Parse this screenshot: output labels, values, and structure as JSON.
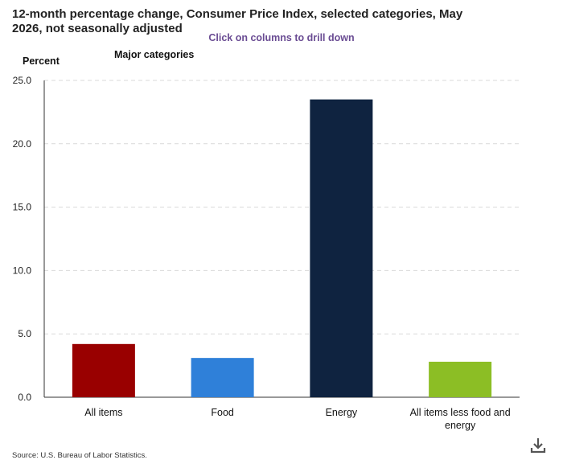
{
  "chart": {
    "title": "12-month percentage change, Consumer Price Index, selected categories, May 2026, not seasonally adjusted",
    "drill_hint": "Click on columns to drill down",
    "subtitle": "Major categories",
    "unit_label": "Percent"
  },
  "source": "Source: U.S. Bureau of Labor Statistics.",
  "icons": {
    "download": "download-icon"
  },
  "chart_data": {
    "type": "bar",
    "title": "12-month percentage change, Consumer Price Index, selected categories, May 2026, not seasonally adjusted",
    "subtitle": "Major categories",
    "ylabel": "Percent",
    "xlabel": "",
    "categories": [
      "All items",
      "Food",
      "Energy",
      "All items less food and energy"
    ],
    "values": [
      4.2,
      3.1,
      23.5,
      2.8
    ],
    "colors": [
      "#990000",
      "#2f80d9",
      "#0f2340",
      "#8cbe25"
    ],
    "ylim": [
      0,
      25
    ],
    "yticks": [
      "0.0",
      "5.0",
      "10.0",
      "15.0",
      "20.0",
      "25.0"
    ],
    "grid": true,
    "legend": "none"
  }
}
